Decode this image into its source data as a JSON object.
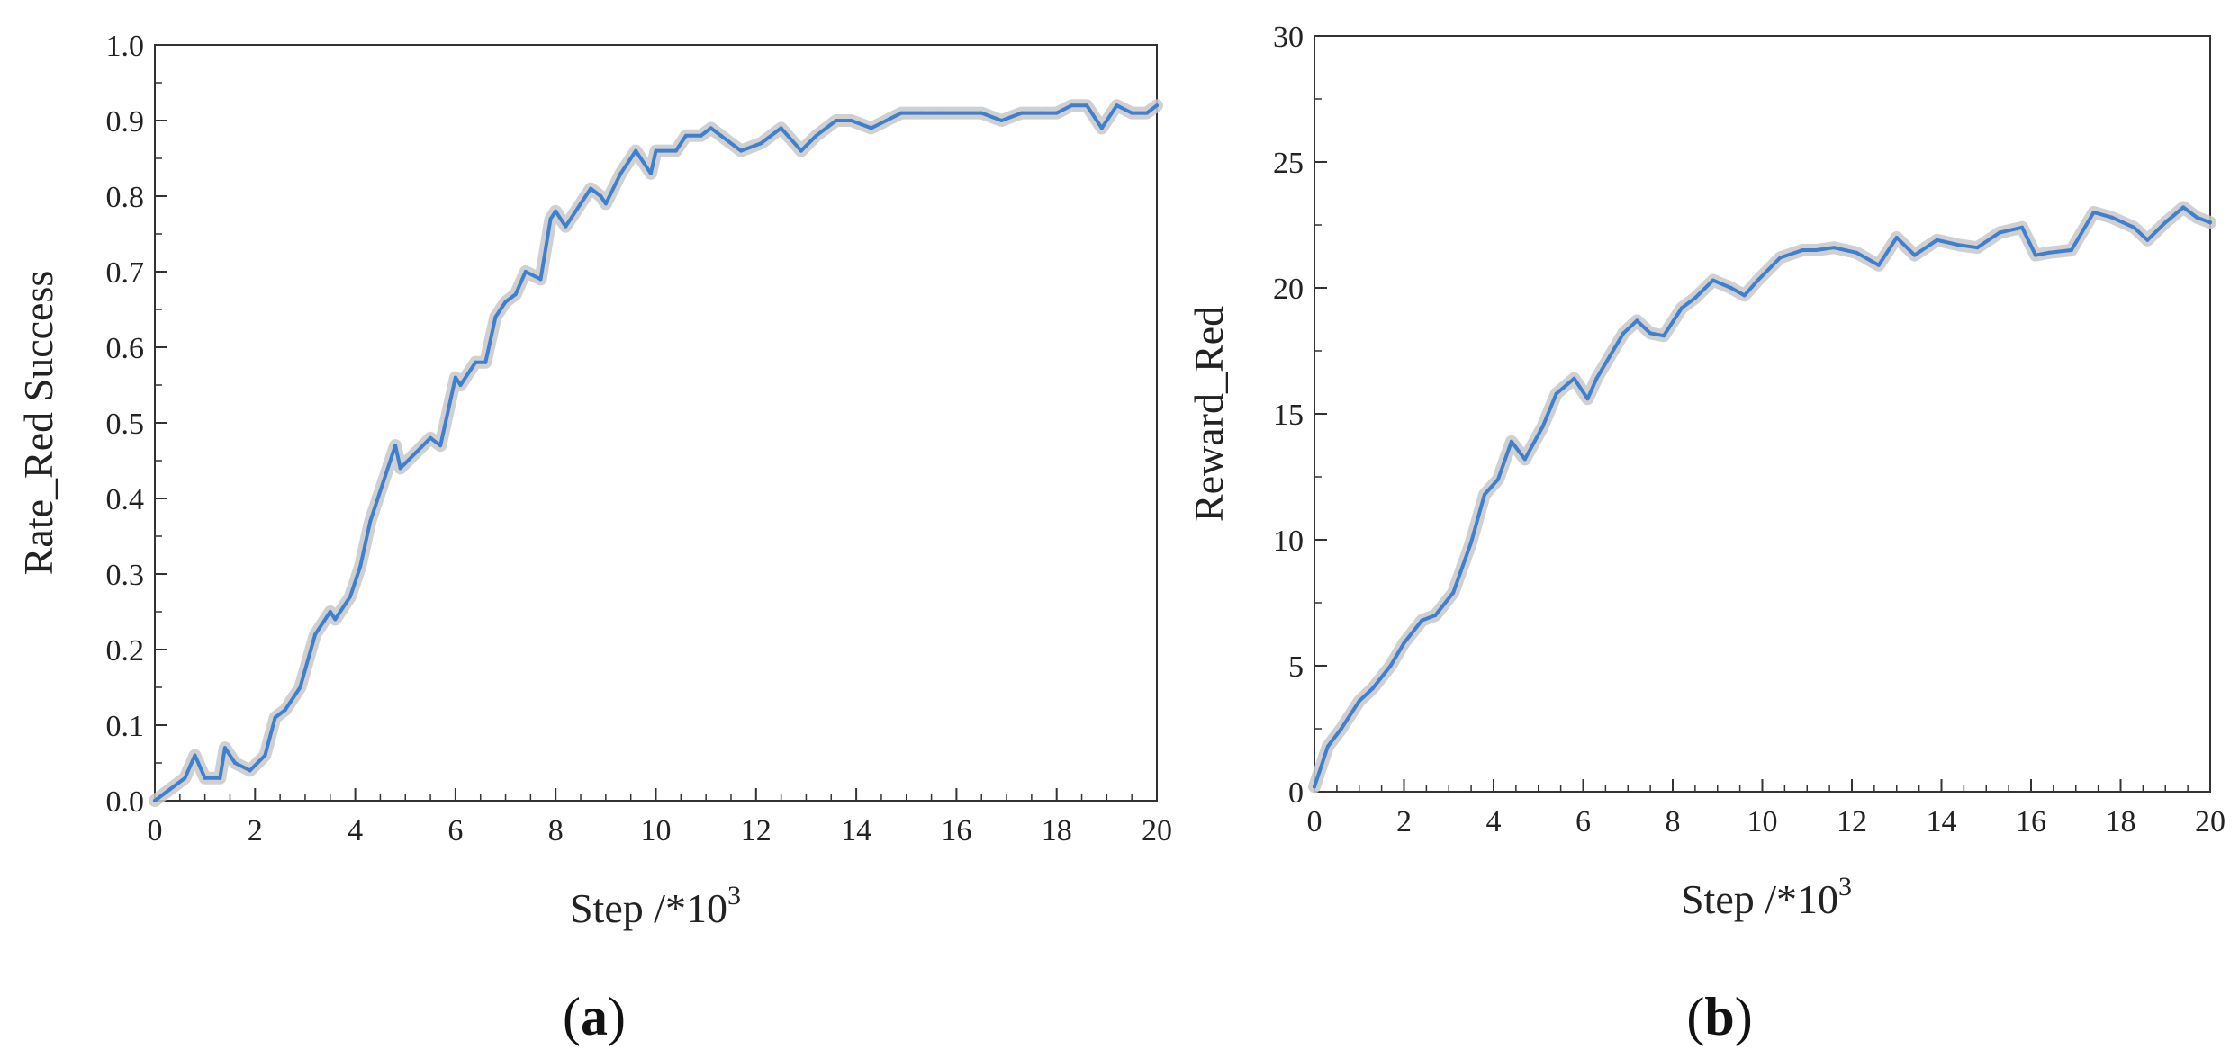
{
  "figure_labels": [
    {
      "open": "(",
      "letter": "a",
      "close": ")"
    },
    {
      "open": "(",
      "letter": "b",
      "close": ")"
    }
  ],
  "colors": {
    "line": "#3f7fcf",
    "band": "#c8c8c8",
    "axis": "#333333"
  },
  "chart_data": [
    {
      "type": "line",
      "title": "",
      "xlabel": "Step /*10",
      "xlabel_superscript": "3",
      "ylabel": "Rate_Red Success",
      "xlim": [
        0,
        20
      ],
      "ylim": [
        0,
        1.0
      ],
      "x_ticks": [
        0,
        2,
        4,
        6,
        8,
        10,
        12,
        14,
        16,
        18,
        20
      ],
      "x_tick_labels": [
        "0",
        "2",
        "4",
        "6",
        "8",
        "10",
        "12",
        "14",
        "16",
        "18",
        "20"
      ],
      "y_ticks": [
        0,
        0.1,
        0.2,
        0.3,
        0.4,
        0.5,
        0.6,
        0.7,
        0.8,
        0.9,
        1.0
      ],
      "y_tick_labels": [
        "0.0",
        "0.1",
        "0.2",
        "0.3",
        "0.4",
        "0.5",
        "0.6",
        "0.7",
        "0.8",
        "0.9",
        "1.0"
      ],
      "grid": false,
      "series": [
        {
          "x": [
            0,
            0.3,
            0.6,
            0.8,
            1.0,
            1.3,
            1.4,
            1.6,
            1.9,
            2.2,
            2.4,
            2.6,
            2.9,
            3.2,
            3.5,
            3.6,
            3.9,
            4.1,
            4.3,
            4.6,
            4.8,
            4.9,
            5.2,
            5.5,
            5.7,
            6.0,
            6.1,
            6.4,
            6.6,
            6.8,
            7.0,
            7.2,
            7.4,
            7.7,
            7.9,
            8.0,
            8.2,
            8.5,
            8.7,
            8.9,
            9.0,
            9.3,
            9.6,
            9.9,
            10.0,
            10.4,
            10.6,
            10.9,
            11.1,
            11.3,
            11.7,
            12.1,
            12.5,
            12.9,
            13.2,
            13.6,
            13.9,
            14.3,
            14.6,
            14.9,
            15.3,
            15.7,
            16.1,
            16.5,
            16.9,
            17.3,
            17.7,
            18.0,
            18.3,
            18.6,
            18.9,
            19.2,
            19.5,
            19.8,
            20.0
          ],
          "y": [
            0.0,
            0.015,
            0.03,
            0.06,
            0.03,
            0.03,
            0.07,
            0.05,
            0.04,
            0.06,
            0.11,
            0.12,
            0.15,
            0.22,
            0.25,
            0.24,
            0.27,
            0.31,
            0.37,
            0.43,
            0.47,
            0.44,
            0.46,
            0.48,
            0.47,
            0.56,
            0.55,
            0.58,
            0.58,
            0.64,
            0.66,
            0.67,
            0.7,
            0.69,
            0.77,
            0.78,
            0.76,
            0.79,
            0.81,
            0.8,
            0.79,
            0.83,
            0.86,
            0.83,
            0.86,
            0.86,
            0.88,
            0.88,
            0.89,
            0.88,
            0.86,
            0.87,
            0.89,
            0.86,
            0.88,
            0.9,
            0.9,
            0.89,
            0.9,
            0.91,
            0.91,
            0.91,
            0.91,
            0.91,
            0.9,
            0.91,
            0.91,
            0.91,
            0.92,
            0.92,
            0.89,
            0.92,
            0.91,
            0.91,
            0.92
          ]
        }
      ]
    },
    {
      "type": "line",
      "title": "",
      "xlabel": "Step /*10",
      "xlabel_superscript": "3",
      "ylabel": "Reward_Red",
      "xlim": [
        0,
        20
      ],
      "ylim": [
        0,
        30
      ],
      "x_ticks": [
        0,
        2,
        4,
        6,
        8,
        10,
        12,
        14,
        16,
        18,
        20
      ],
      "x_tick_labels": [
        "0",
        "2",
        "4",
        "6",
        "8",
        "10",
        "12",
        "14",
        "16",
        "18",
        "20"
      ],
      "y_ticks": [
        0,
        5,
        10,
        15,
        20,
        25,
        30
      ],
      "y_tick_labels": [
        "0",
        "5",
        "10",
        "15",
        "20",
        "25",
        "30"
      ],
      "grid": false,
      "series": [
        {
          "x": [
            0,
            0.3,
            0.6,
            1.0,
            1.3,
            1.7,
            2.0,
            2.4,
            2.7,
            3.1,
            3.5,
            3.8,
            4.1,
            4.4,
            4.7,
            5.1,
            5.4,
            5.8,
            6.1,
            6.3,
            6.6,
            6.9,
            7.2,
            7.5,
            7.8,
            8.2,
            8.5,
            8.9,
            9.3,
            9.6,
            9.9,
            10.4,
            10.9,
            11.2,
            11.6,
            12.1,
            12.6,
            13.0,
            13.4,
            13.9,
            14.4,
            14.8,
            15.3,
            15.8,
            16.1,
            16.4,
            16.9,
            17.4,
            17.8,
            18.3,
            18.6,
            19.0,
            19.4,
            19.7,
            20.0
          ],
          "y": [
            0.2,
            1.8,
            2.5,
            3.6,
            4.1,
            5.0,
            5.9,
            6.8,
            7.0,
            7.9,
            9.9,
            11.8,
            12.4,
            13.9,
            13.2,
            14.5,
            15.8,
            16.4,
            15.6,
            16.4,
            17.3,
            18.2,
            18.7,
            18.2,
            18.1,
            19.2,
            19.6,
            20.3,
            20.0,
            19.7,
            20.3,
            21.2,
            21.5,
            21.5,
            21.6,
            21.4,
            20.9,
            22.0,
            21.3,
            21.9,
            21.7,
            21.6,
            22.2,
            22.4,
            21.3,
            21.4,
            21.5,
            23.0,
            22.8,
            22.4,
            21.9,
            22.6,
            23.2,
            22.8,
            22.6
          ]
        }
      ]
    }
  ]
}
